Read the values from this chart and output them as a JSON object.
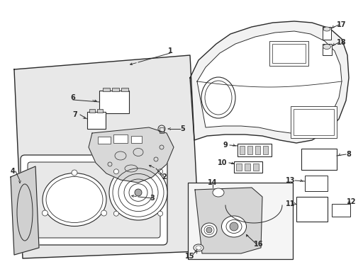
{
  "bg_color": "#ffffff",
  "lc": "#2a2a2a",
  "panel_fill": "#e8e8e8",
  "white": "#ffffff",
  "part_nums": [
    "1",
    "2",
    "3",
    "4",
    "5",
    "6",
    "7",
    "8",
    "9",
    "10",
    "11",
    "12",
    "13",
    "14",
    "15",
    "16",
    "17",
    "18"
  ]
}
